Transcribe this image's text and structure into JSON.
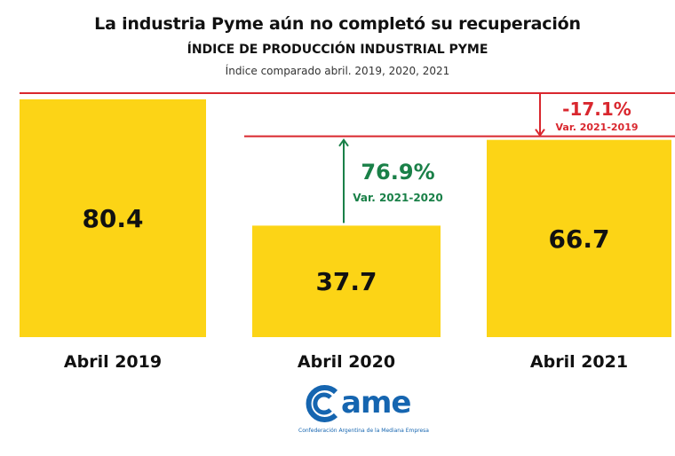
{
  "header": {
    "title": "La industria Pyme aún no completó su recuperación",
    "subtitle": "ÍNDICE DE PRODUCCIÓN INDUSTRIAL PYME",
    "note": "Índice comparado abril. 2019, 2020, 2021"
  },
  "colors": {
    "bar": "#fcd416",
    "red": "#d9272e",
    "green": "#1a8048",
    "logo_blue": "#1565b0"
  },
  "chart_data": {
    "type": "bar",
    "title": "La industria Pyme aún no completó su recuperación",
    "subtitle": "ÍNDICE DE PRODUCCIÓN INDUSTRIAL PYME",
    "note": "Índice comparado abril. 2019, 2020, 2021",
    "categories": [
      "Abril 2019",
      "Abril 2020",
      "Abril 2021"
    ],
    "values": [
      80.4,
      37.7,
      66.7
    ],
    "value_labels": [
      "80.4",
      "37.7",
      "66.7"
    ],
    "xlabel": "",
    "ylabel": "",
    "ylim": [
      0,
      80.4
    ],
    "grid": false,
    "annotations": [
      {
        "value": "76.9%",
        "label": "Var. 2021-2020",
        "from": "Abril 2020",
        "to": "Abril 2021",
        "direction": "up",
        "color": "#1a8048"
      },
      {
        "value": "-17.1%",
        "label": "Var. 2021-2019",
        "from": "Abril 2019",
        "to": "Abril 2021",
        "direction": "down",
        "color": "#d9272e"
      }
    ]
  },
  "logo": {
    "c_letter": "c",
    "rest": "ame",
    "tagline": "Confederación Argentina de la Mediana Empresa"
  }
}
